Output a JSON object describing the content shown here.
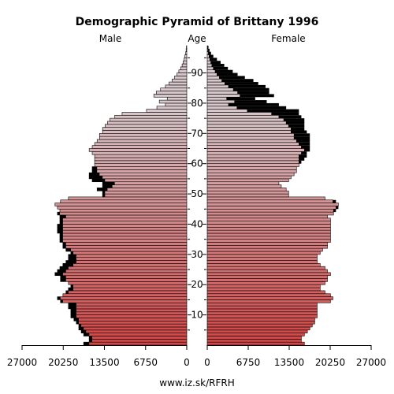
{
  "chart_data": {
    "type": "bar",
    "title": "Demographic Pyramid of Brittany 1996",
    "left_label": "Male",
    "center_label": "Age",
    "right_label": "Female",
    "footer": "www.iz.sk/RFRH",
    "x_ticks": [
      "27000",
      "20250",
      "13500",
      "6750",
      "0"
    ],
    "x_ticks_right": [
      "0",
      "6750",
      "13500",
      "20250",
      "27000"
    ],
    "age_ticks": [
      "10",
      "20",
      "30",
      "40",
      "50",
      "60",
      "70",
      "80",
      "90"
    ],
    "xlim": [
      0,
      27000
    ],
    "ylim": [
      0,
      99
    ],
    "bar_color_young": "#d04545",
    "bar_color_old": "#d8c8cc",
    "excess_color": "#000000",
    "ages": [
      0,
      1,
      2,
      3,
      4,
      5,
      6,
      7,
      8,
      9,
      10,
      11,
      12,
      13,
      14,
      15,
      16,
      17,
      18,
      19,
      20,
      21,
      22,
      23,
      24,
      25,
      26,
      27,
      28,
      29,
      30,
      31,
      32,
      33,
      34,
      35,
      36,
      37,
      38,
      39,
      40,
      41,
      42,
      43,
      44,
      45,
      46,
      47,
      48,
      49,
      50,
      51,
      52,
      53,
      54,
      55,
      56,
      57,
      58,
      59,
      60,
      61,
      62,
      63,
      64,
      65,
      66,
      67,
      68,
      69,
      70,
      71,
      72,
      73,
      74,
      75,
      76,
      77,
      78,
      79,
      80,
      81,
      82,
      83,
      84,
      85,
      86,
      87,
      88,
      89,
      90,
      91,
      92,
      93,
      94,
      95,
      96,
      97,
      98
    ],
    "series": [
      {
        "name": "Male",
        "values": [
          16900,
          16000,
          16000,
          16900,
          17300,
          17700,
          17700,
          18100,
          18500,
          19000,
          19000,
          19000,
          19400,
          19400,
          20700,
          21200,
          20300,
          19800,
          19400,
          19000,
          19400,
          20700,
          20700,
          21600,
          21200,
          20800,
          20300,
          19800,
          19400,
          19400,
          19000,
          19800,
          20300,
          20300,
          20800,
          20800,
          20800,
          21200,
          21200,
          21200,
          20800,
          20800,
          20800,
          21200,
          20800,
          21200,
          21600,
          20700,
          19400,
          13800,
          13800,
          14700,
          13800,
          13800,
          15500,
          16000,
          16000,
          15500,
          15500,
          15100,
          15100,
          15100,
          15100,
          15500,
          16000,
          15500,
          15100,
          14700,
          14300,
          14300,
          13800,
          13800,
          13400,
          13000,
          12600,
          11800,
          10600,
          6600,
          4900,
          3500,
          4500,
          3200,
          5400,
          5000,
          4300,
          3500,
          2900,
          2400,
          2000,
          1600,
          1300,
          1000,
          760,
          590,
          420,
          300,
          180,
          110,
          55
        ]
      },
      {
        "name": "Female",
        "values": [
          16000,
          15500,
          15500,
          16000,
          16500,
          16900,
          17300,
          17700,
          17700,
          18100,
          18100,
          18100,
          18100,
          18100,
          20300,
          20700,
          20300,
          19400,
          18600,
          18600,
          19400,
          19800,
          19800,
          20300,
          19800,
          19400,
          18600,
          18100,
          18100,
          18100,
          18600,
          19000,
          19800,
          19800,
          20300,
          20300,
          20300,
          20300,
          20300,
          20300,
          20300,
          20300,
          19800,
          20800,
          21200,
          21600,
          21600,
          21200,
          19400,
          13400,
          13400,
          13000,
          12200,
          11800,
          13400,
          13800,
          14300,
          14700,
          14700,
          15100,
          15500,
          16000,
          16400,
          16400,
          16900,
          16900,
          16900,
          16900,
          16900,
          16900,
          16400,
          16000,
          16000,
          16000,
          16000,
          15500,
          15100,
          15100,
          13000,
          11800,
          9800,
          7900,
          11000,
          10200,
          10200,
          9600,
          8400,
          7600,
          6200,
          5000,
          4200,
          3400,
          2800,
          2200,
          1600,
          1000,
          620,
          380,
          200
        ]
      }
    ]
  }
}
